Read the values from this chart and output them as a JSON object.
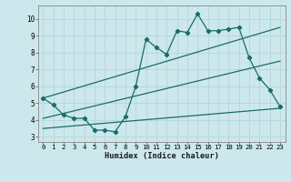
{
  "title": "",
  "xlabel": "Humidex (Indice chaleur)",
  "ylabel": "",
  "background_color": "#cce8ec",
  "grid_color": "#b8d8dc",
  "line_color": "#1a6b6b",
  "xlim": [
    -0.5,
    23.5
  ],
  "ylim": [
    2.7,
    10.8
  ],
  "xticks": [
    0,
    1,
    2,
    3,
    4,
    5,
    6,
    7,
    8,
    9,
    10,
    11,
    12,
    13,
    14,
    15,
    16,
    17,
    18,
    19,
    20,
    21,
    22,
    23
  ],
  "yticks": [
    3,
    4,
    5,
    6,
    7,
    8,
    9,
    10
  ],
  "line1_x": [
    0,
    1,
    2,
    3,
    4,
    5,
    6,
    7,
    8,
    9,
    10,
    11,
    12,
    13,
    14,
    15,
    16,
    17,
    18,
    19,
    20,
    21,
    22,
    23
  ],
  "line1_y": [
    5.3,
    4.9,
    4.3,
    4.1,
    4.1,
    3.4,
    3.4,
    3.3,
    4.2,
    6.0,
    8.8,
    8.3,
    7.9,
    9.3,
    9.2,
    10.3,
    9.3,
    9.3,
    9.4,
    9.5,
    7.7,
    6.5,
    5.8,
    4.8
  ],
  "line2_x": [
    0,
    23
  ],
  "line2_y": [
    5.3,
    9.5
  ],
  "line3_x": [
    0,
    23
  ],
  "line3_y": [
    4.1,
    7.5
  ],
  "line4_x": [
    0,
    23
  ],
  "line4_y": [
    3.5,
    4.7
  ]
}
